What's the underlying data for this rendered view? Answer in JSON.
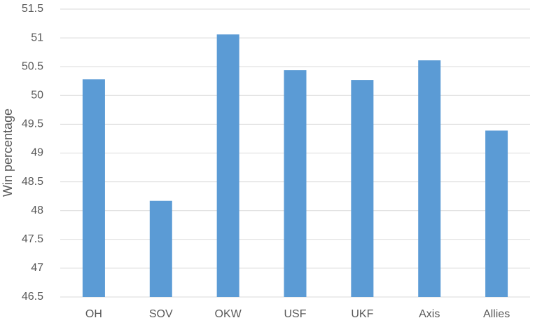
{
  "chart_data": {
    "type": "bar",
    "y_label": "Win percentage",
    "categories": [
      "OH",
      "SOV",
      "OKW",
      "USF",
      "UKF",
      "Axis",
      "Allies"
    ],
    "values": [
      50.28,
      48.17,
      51.06,
      50.44,
      50.27,
      50.61,
      49.39
    ],
    "color": "#5b9bd5",
    "ylim": [
      46.5,
      51.5
    ],
    "yticks": [
      46.5,
      47,
      47.5,
      48,
      48.5,
      49,
      49.5,
      50,
      50.5,
      51,
      51.5
    ],
    "grid": true
  }
}
